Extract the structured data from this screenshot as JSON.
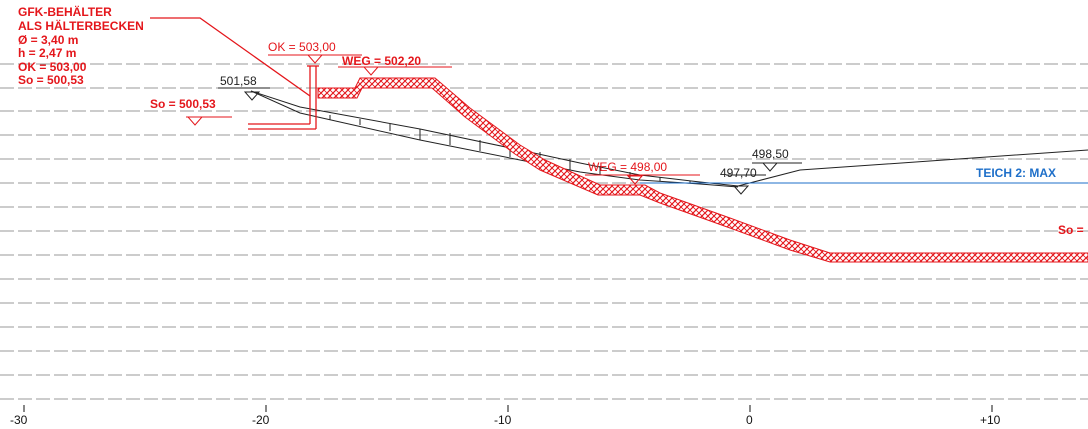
{
  "container_info": {
    "title": "GFK-BEHÄLTER",
    "line2": "ALS HÄLTERBECKEN",
    "line3": "Ø = 3,40 m",
    "line4": "h = 2,47 m",
    "line5": "OK = 503,00",
    "line6": "So = 500,53"
  },
  "labels": {
    "ok_top": "OK = 503,00",
    "weg_top": "WEG = 502,20",
    "so_left": "So = 500,53",
    "ground_left": "501,58",
    "weg_mid": "WEG = 498,00",
    "level_right_upper": "498,50",
    "level_right_lower": "497,70",
    "teich": "TEICH 2: MAX",
    "so_right": "So ="
  },
  "axis": {
    "ticks": [
      "-30",
      "-20",
      "-10",
      "0",
      "+10"
    ]
  },
  "colors": {
    "red": "#e4161b",
    "black": "#222222",
    "blue": "#1e6fc9",
    "dashed": "#9a9a9a"
  }
}
